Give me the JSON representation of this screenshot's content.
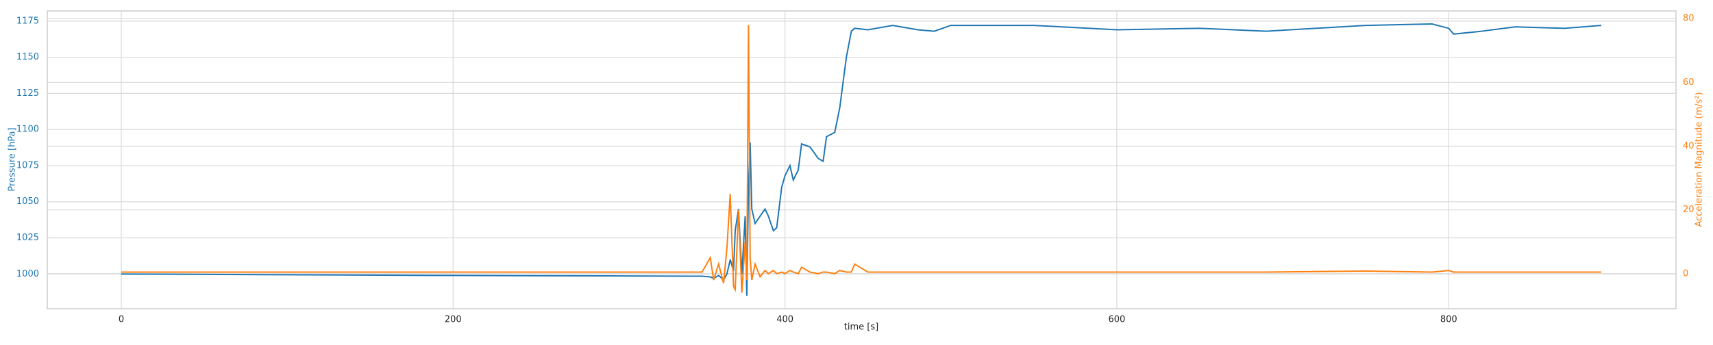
{
  "chart_data": {
    "type": "line",
    "xlabel": "time [s]",
    "ylabel": "Pressure [hPa]",
    "y2label": "Acceleration Magnitude (m/s²)",
    "x": [
      0,
      100,
      200,
      300,
      350,
      355,
      357,
      360,
      363,
      365,
      367,
      369,
      370,
      372,
      374,
      376,
      377,
      378,
      379,
      380,
      382,
      385,
      388,
      390,
      393,
      395,
      398,
      400,
      403,
      405,
      408,
      410,
      415,
      420,
      423,
      425,
      430,
      433,
      437,
      440,
      442,
      450,
      465,
      480,
      490,
      500,
      550,
      600,
      650,
      690,
      750,
      790,
      800,
      803,
      820,
      840,
      870,
      892
    ],
    "series": [
      {
        "name": "Pressure",
        "color": "#1f77b4",
        "values": [
          1000,
          999.5,
          999,
          998.7,
          998.5,
          998,
          997,
          999,
          996,
          1000,
          1010,
          1002,
          1030,
          1045,
          1000,
          1040,
          985,
          1060,
          1091,
          1045,
          1035,
          1040,
          1045,
          1040,
          1030,
          1032,
          1060,
          1068,
          1075,
          1065,
          1072,
          1090,
          1088,
          1080,
          1078,
          1095,
          1098,
          1115,
          1150,
          1168,
          1170,
          1169,
          1172,
          1169,
          1168,
          1172,
          1172,
          1169,
          1170,
          1168,
          1172,
          1173,
          1170,
          1166,
          1168,
          1171,
          1170,
          1172
        ]
      },
      {
        "name": "Acceleration",
        "color": "#ff7f0e",
        "axis": "y2",
        "values": [
          0.5,
          0.5,
          0.5,
          0.5,
          0.5,
          5,
          -2,
          3,
          -3,
          8,
          25,
          -4,
          -5,
          20,
          -6,
          10,
          -2,
          78,
          5,
          -2,
          3,
          -1,
          1,
          0,
          1,
          0,
          0.5,
          0,
          1,
          0.5,
          0,
          2,
          0.5,
          0,
          0.5,
          0.5,
          0,
          1,
          0.5,
          0.5,
          3,
          0.5,
          0.5,
          0.5,
          0.5,
          0.5,
          0.5,
          0.5,
          0.5,
          0.5,
          0.8,
          0.5,
          1,
          0.5,
          0.5,
          0.5,
          0.5,
          0.5
        ]
      }
    ],
    "xlim": [
      -44.6,
      937
    ],
    "xticks": [
      0,
      200,
      400,
      600,
      800
    ],
    "ylim": [
      976,
      1182
    ],
    "yticks": [
      1000,
      1025,
      1050,
      1075,
      1100,
      1125,
      1150,
      1175
    ],
    "y2lim": [
      -11,
      82.4
    ],
    "y2ticks": [
      0,
      20,
      40,
      60,
      80
    ],
    "grid": true
  }
}
